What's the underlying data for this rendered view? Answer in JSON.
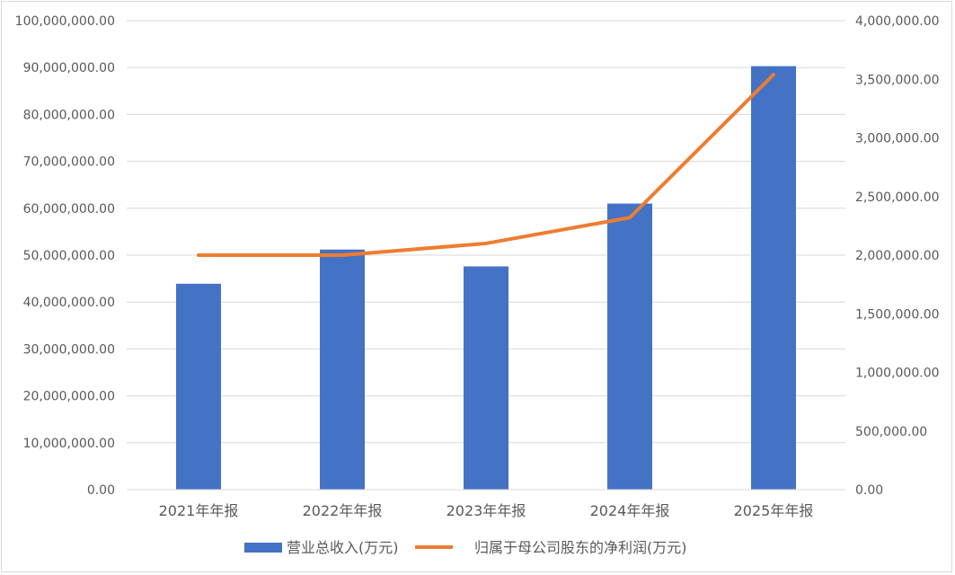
{
  "chart_data": {
    "type": "bar",
    "categories": [
      "2021年年报",
      "2022年年报",
      "2023年年报",
      "2024年年报",
      "2025年年报"
    ],
    "series": [
      {
        "name": "营业总收入(万元)",
        "type": "bar",
        "axis": "left",
        "color": "#4472C4",
        "values": [
          43900000,
          51200000,
          47600000,
          61000000,
          90300000
        ]
      },
      {
        "name": "归属于母公司股东的净利润(万元)",
        "type": "line",
        "axis": "right",
        "color": "#ED7D31",
        "values": [
          2000000,
          2000000,
          2100000,
          2320000,
          3540000
        ]
      }
    ],
    "y_left": {
      "min": 0,
      "max": 100000000,
      "ticks": [
        "0.00",
        "10,000,000.00",
        "20,000,000.00",
        "30,000,000.00",
        "40,000,000.00",
        "50,000,000.00",
        "60,000,000.00",
        "70,000,000.00",
        "80,000,000.00",
        "90,000,000.00",
        "100,000,000.00"
      ]
    },
    "y_right": {
      "min": 0,
      "max": 4000000,
      "ticks": [
        "0.00",
        "500,000.00",
        "1,000,000.00",
        "1,500,000.00",
        "2,000,000.00",
        "2,500,000.00",
        "3,000,000.00",
        "3,500,000.00",
        "4,000,000.00"
      ]
    },
    "grid": true,
    "legend_position": "bottom"
  }
}
